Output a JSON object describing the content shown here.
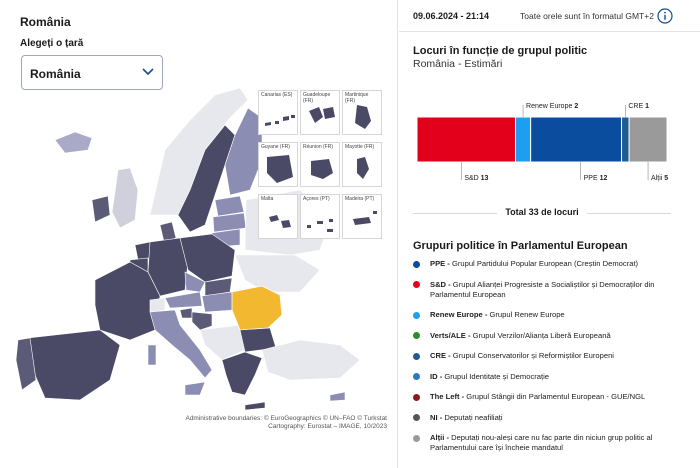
{
  "left": {
    "country_title": "România",
    "select_label": "Alegeți o țară",
    "select_value": "România",
    "insets": [
      "Canarias (ES)",
      "Guadeloupe (FR)",
      "Martinique (FR)",
      "Guyane (FR)",
      "Réunion (FR)",
      "Mayotte (FR)",
      "Malta",
      "Açores (PT)",
      "Madeira (PT)"
    ],
    "credits_line1": "Administrative boundaries: © EuroGeographics © UN–FAO © Turkstat",
    "credits_line2": "Cartography: Eurostat – IMAGE, 10/2023"
  },
  "right": {
    "date": "09.06.2024 - 21:14",
    "timezone_note": "Toate orele sunt în formatul GMT+2",
    "chart_title": "Locuri în funcție de grupul politic",
    "chart_subtitle": "România - Estimări",
    "total_label": "Total 33 de locuri",
    "legend_title": "Grupuri politice în Parlamentul European"
  },
  "chart_data": {
    "type": "bar",
    "orientation": "horizontal-stacked",
    "title": "Locuri în funcție de grupul politic",
    "subtitle": "România - Estimări",
    "total": 33,
    "segments": [
      {
        "name": "S&D",
        "value": 13,
        "color": "#e3001b",
        "label_pos": "bottom"
      },
      {
        "name": "Renew Europe",
        "value": 2,
        "color": "#1e9ef0",
        "label_pos": "top"
      },
      {
        "name": "PPE",
        "value": 12,
        "color": "#0a4d9e",
        "label_pos": "bottom"
      },
      {
        "name": "CRE",
        "value": 1,
        "color": "#1f5c8f",
        "label_pos": "top"
      },
      {
        "name": "Alții",
        "value": 5,
        "color": "#9a9a9a",
        "label_pos": "bottom"
      }
    ]
  },
  "legend": [
    {
      "abbr": "PPE",
      "desc": "Grupul Partidului Popular European (Creștin Democrat)",
      "color": "#0a4d9e"
    },
    {
      "abbr": "S&D",
      "desc": "Grupul Alianței Progresiste a Socialiștilor și Democraților din Parlamentul European",
      "color": "#e3001b"
    },
    {
      "abbr": "Renew Europe",
      "desc": "Grupul Renew Europe",
      "color": "#1e9ef0"
    },
    {
      "abbr": "Verts/ALE",
      "desc": "Grupul Verzilor/Alianța Liberă Europeană",
      "color": "#2e8b2e"
    },
    {
      "abbr": "CRE",
      "desc": "Grupul Conservatorilor și Reformiștilor Europeni",
      "color": "#1f5c8f"
    },
    {
      "abbr": "ID",
      "desc": "Grupul Identitate și Democrație",
      "color": "#2a78c2"
    },
    {
      "abbr": "The Left",
      "desc": "Grupul Stângii din Parlamentul European - GUE/NGL",
      "color": "#8b1a1a"
    },
    {
      "abbr": "NI",
      "desc": "Deputați neafiliați",
      "color": "#555555"
    },
    {
      "abbr": "Alții",
      "desc": "Deputați nou-aleși care nu fac parte din niciun grup politic al Parlamentului care își încheie mandatul",
      "color": "#9a9a9a"
    }
  ]
}
